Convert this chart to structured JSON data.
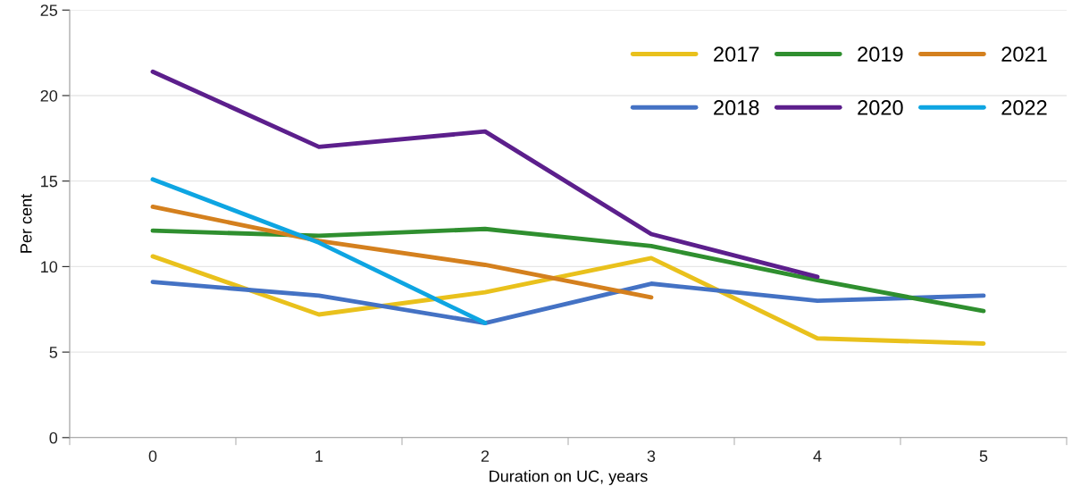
{
  "chart_data": {
    "type": "line",
    "xlabel": "Duration on UC, years",
    "ylabel": "Per cent",
    "categories": [
      "0",
      "1",
      "2",
      "3",
      "4",
      "5"
    ],
    "series": [
      {
        "name": "2017",
        "color": "#e9c11c",
        "values": [
          10.6,
          7.2,
          8.5,
          10.5,
          5.8,
          5.5
        ]
      },
      {
        "name": "2018",
        "color": "#4472c4",
        "values": [
          9.1,
          8.3,
          6.7,
          9.0,
          8.0,
          8.3
        ]
      },
      {
        "name": "2019",
        "color": "#2f8f2f",
        "values": [
          12.1,
          11.8,
          12.2,
          11.2,
          9.2,
          7.4
        ]
      },
      {
        "name": "2020",
        "color": "#5c1f8c",
        "values": [
          21.4,
          17.0,
          17.9,
          11.9,
          9.4,
          null
        ]
      },
      {
        "name": "2021",
        "color": "#d4801e",
        "values": [
          13.5,
          11.5,
          10.1,
          8.2,
          null,
          null
        ]
      },
      {
        "name": "2022",
        "color": "#0ea5e2",
        "values": [
          15.1,
          11.4,
          6.7,
          null,
          null,
          null
        ]
      }
    ],
    "ylim": [
      0,
      25
    ],
    "yticks": [
      0,
      5,
      10,
      15,
      20,
      25
    ],
    "grid": "y",
    "legend": "top right",
    "marker": "none",
    "line_style": "solid"
  }
}
